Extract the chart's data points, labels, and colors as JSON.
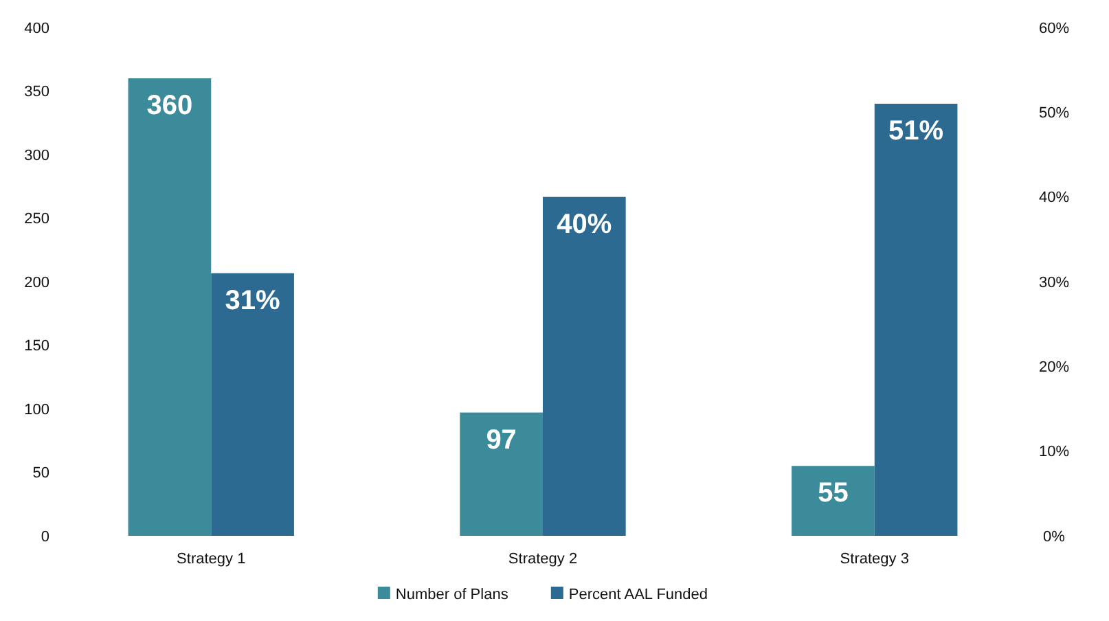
{
  "chart_data": {
    "type": "bar",
    "categories": [
      "Strategy 1",
      "Strategy 2",
      "Strategy 3"
    ],
    "series": [
      {
        "name": "Number of Plans",
        "color": "#3b8b9b",
        "values": [
          360,
          97,
          55
        ],
        "value_labels": [
          "360",
          "97",
          "55"
        ]
      },
      {
        "name": "Percent AAL Funded",
        "color": "#2d6a92",
        "values": [
          31,
          40,
          51
        ],
        "axis": "y2",
        "value_labels": [
          "31%",
          "40%",
          "51%"
        ]
      }
    ],
    "ylim": [
      0,
      400
    ],
    "yticks": [
      0,
      50,
      100,
      150,
      200,
      250,
      300,
      350,
      400
    ],
    "y2lim": [
      0,
      60
    ],
    "y2ticks": [
      {
        "value": 0,
        "label": "0%"
      },
      {
        "value": 10,
        "label": "10%"
      },
      {
        "value": 20,
        "label": "20%"
      },
      {
        "value": 30,
        "label": "30%"
      },
      {
        "value": 40,
        "label": "40%"
      },
      {
        "value": 50,
        "label": "50%"
      },
      {
        "value": 60,
        "label": "60%"
      }
    ],
    "legend": "bottom"
  }
}
